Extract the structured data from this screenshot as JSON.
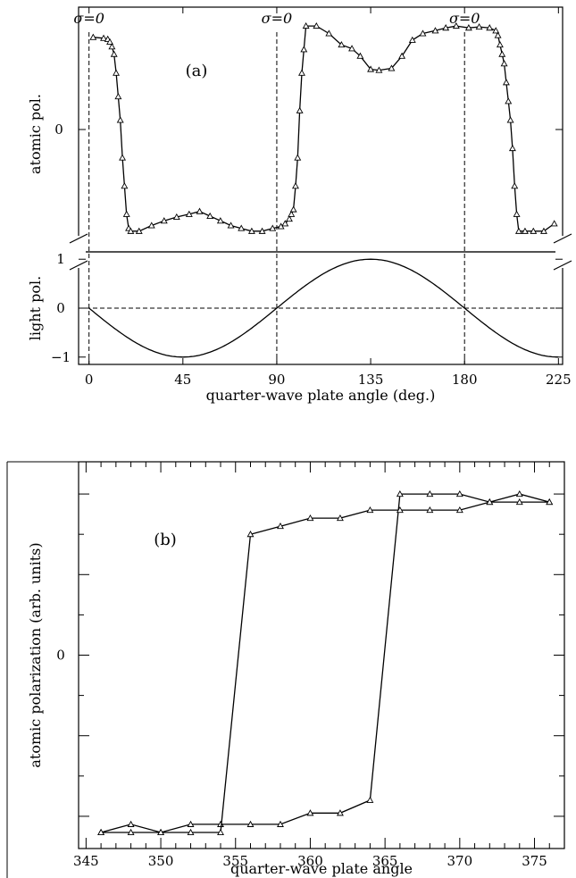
{
  "chart_data": [
    {
      "type": "line",
      "panel_label": "(a)",
      "xlabel": "quarter-wave plate angle (deg.)",
      "xlim": [
        -5,
        227
      ],
      "x_ticks": [
        "0",
        "45",
        "90",
        "135",
        "180",
        "225"
      ],
      "x_tick_values": [
        0,
        45,
        90,
        135,
        180,
        225
      ],
      "top": {
        "ylabel": "atomic pol.",
        "y_ticks": [
          "0"
        ],
        "ylim": [
          -1.3,
          1.3
        ],
        "series": [
          {
            "marker": "triangle",
            "points": [
              [
                2,
                0.98
              ],
              [
                7,
                0.97
              ],
              [
                9,
                0.96
              ],
              [
                10,
                0.93
              ],
              [
                11,
                0.88
              ],
              [
                12,
                0.8
              ],
              [
                13,
                0.6
              ],
              [
                14,
                0.35
              ],
              [
                15,
                0.1
              ],
              [
                16,
                -0.3
              ],
              [
                17,
                -0.6
              ],
              [
                18,
                -0.9
              ],
              [
                19,
                -1.05
              ],
              [
                20,
                -1.08
              ],
              [
                24,
                -1.08
              ],
              [
                30,
                -1.02
              ],
              [
                36,
                -0.97
              ],
              [
                42,
                -0.93
              ],
              [
                48,
                -0.9
              ],
              [
                53,
                -0.87
              ],
              [
                58,
                -0.92
              ],
              [
                63,
                -0.97
              ],
              [
                68,
                -1.02
              ],
              [
                73,
                -1.05
              ],
              [
                78,
                -1.08
              ],
              [
                83,
                -1.08
              ],
              [
                88,
                -1.05
              ],
              [
                92,
                -1.03
              ],
              [
                94,
                -1.0
              ],
              [
                96,
                -0.95
              ],
              [
                97,
                -0.9
              ],
              [
                98,
                -0.85
              ],
              [
                99,
                -0.6
              ],
              [
                100,
                -0.3
              ],
              [
                101,
                0.2
              ],
              [
                102,
                0.6
              ],
              [
                103,
                0.85
              ],
              [
                104,
                1.1
              ],
              [
                109,
                1.1
              ],
              [
                115,
                1.02
              ],
              [
                121,
                0.9
              ],
              [
                126,
                0.86
              ],
              [
                130,
                0.78
              ],
              [
                135,
                0.64
              ],
              [
                139,
                0.63
              ],
              [
                145,
                0.65
              ],
              [
                150,
                0.78
              ],
              [
                155,
                0.95
              ],
              [
                160,
                1.02
              ],
              [
                166,
                1.05
              ],
              [
                171,
                1.08
              ],
              [
                176,
                1.1
              ],
              [
                182,
                1.08
              ],
              [
                187,
                1.09
              ],
              [
                192,
                1.08
              ],
              [
                195,
                1.05
              ],
              [
                196,
                1.0
              ],
              [
                197,
                0.9
              ],
              [
                198,
                0.8
              ],
              [
                199,
                0.7
              ],
              [
                200,
                0.5
              ],
              [
                201,
                0.3
              ],
              [
                202,
                0.1
              ],
              [
                203,
                -0.2
              ],
              [
                204,
                -0.6
              ],
              [
                205,
                -0.9
              ],
              [
                206,
                -1.08
              ],
              [
                209,
                -1.08
              ],
              [
                213,
                -1.08
              ],
              [
                218,
                -1.08
              ],
              [
                223,
                -1.0
              ]
            ]
          }
        ],
        "annotations": [
          "σ=0",
          "σ=0",
          "σ=0"
        ],
        "annotation_x": [
          0,
          90,
          180
        ],
        "vlines_x": [
          0,
          90,
          180
        ]
      },
      "bottom": {
        "ylabel": "light pol.",
        "y_ticks": [
          "1",
          "0",
          "−1"
        ],
        "y_tick_values": [
          1,
          0,
          -1
        ],
        "ylim": [
          -1.15,
          1.15
        ],
        "series": [
          {
            "function": "-sin(2x)",
            "x_range": [
              0,
              225
            ]
          }
        ],
        "hline_y": 0
      }
    },
    {
      "type": "line",
      "panel_label": "(b)",
      "xlabel": "quarter-wave plate angle",
      "ylabel": "atomic polarization (arb. units)",
      "xlim": [
        344.5,
        377
      ],
      "ylim": [
        -1.2,
        1.2
      ],
      "x_ticks": [
        "345",
        "350",
        "355",
        "360",
        "365",
        "370",
        "375"
      ],
      "x_tick_values": [
        345,
        350,
        355,
        360,
        365,
        370,
        375
      ],
      "y_ticks": [
        "0"
      ],
      "y_tick_values": [
        0
      ],
      "series": [
        {
          "marker": "triangle",
          "points": [
            [
              346,
              -1.1
            ],
            [
              348,
              -1.05
            ],
            [
              350,
              -1.1
            ],
            [
              352,
              -1.05
            ],
            [
              354,
              -1.05
            ],
            [
              356,
              -1.05
            ],
            [
              358,
              -1.05
            ],
            [
              360,
              -0.98
            ],
            [
              362,
              -0.98
            ],
            [
              364,
              -0.9
            ],
            [
              366,
              1.0
            ],
            [
              368,
              1.0
            ],
            [
              370,
              1.0
            ],
            [
              372,
              0.95
            ],
            [
              374,
              1.0
            ],
            [
              376,
              0.95
            ]
          ]
        },
        {
          "marker": "triangle",
          "points": [
            [
              376,
              0.95
            ],
            [
              374,
              0.95
            ],
            [
              372,
              0.95
            ],
            [
              370,
              0.9
            ],
            [
              368,
              0.9
            ],
            [
              366,
              0.9
            ],
            [
              364,
              0.9
            ],
            [
              362,
              0.85
            ],
            [
              360,
              0.85
            ],
            [
              358,
              0.8
            ],
            [
              356,
              0.75
            ],
            [
              354,
              -1.1
            ],
            [
              352,
              -1.1
            ],
            [
              350,
              -1.1
            ],
            [
              348,
              -1.1
            ],
            [
              346,
              -1.1
            ]
          ]
        }
      ]
    }
  ]
}
